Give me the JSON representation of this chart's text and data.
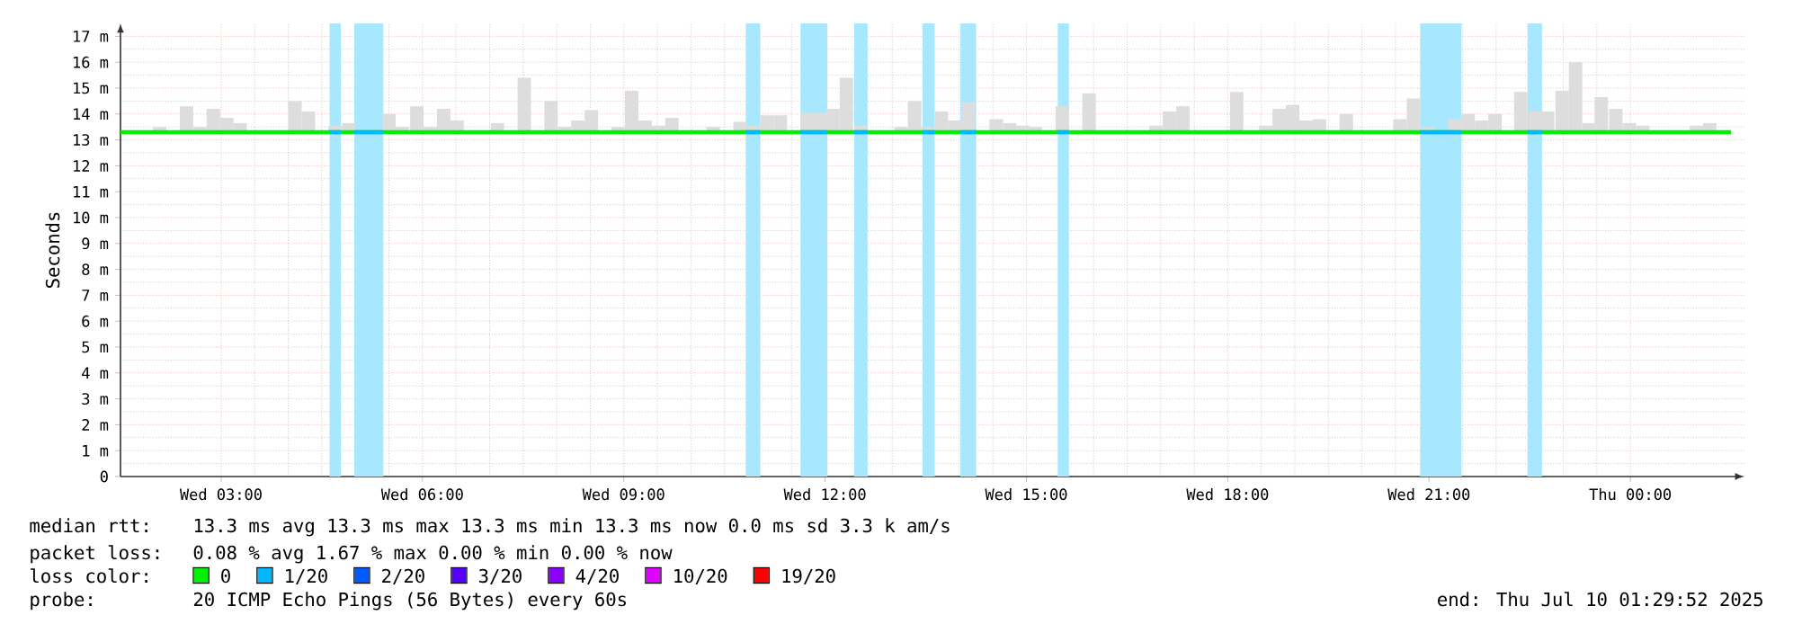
{
  "chart_data": {
    "type": "line",
    "ylabel": "Seconds",
    "legend_title": "loss color:",
    "legend": "bottom",
    "grid": true,
    "marker": "none",
    "xlim": [
      "2025-07-09T01:30",
      "2025-07-10T01:42"
    ],
    "ylim": [
      0,
      17.5
    ],
    "xticks": [
      {
        "value": "2025-07-09T03:00",
        "label": "Wed 03:00"
      },
      {
        "value": "2025-07-09T06:00",
        "label": "Wed 06:00"
      },
      {
        "value": "2025-07-09T09:00",
        "label": "Wed 09:00"
      },
      {
        "value": "2025-07-09T12:00",
        "label": "Wed 12:00"
      },
      {
        "value": "2025-07-09T15:00",
        "label": "Wed 15:00"
      },
      {
        "value": "2025-07-09T18:00",
        "label": "Wed 18:00"
      },
      {
        "value": "2025-07-09T21:00",
        "label": "Wed 21:00"
      },
      {
        "value": "2025-07-10T00:00",
        "label": "Thu 00:00"
      }
    ],
    "yticks": [
      0,
      {
        "value": 1,
        "label": "1 m"
      },
      {
        "value": 2,
        "label": "2 m"
      },
      {
        "value": 3,
        "label": "3 m"
      },
      {
        "value": 4,
        "label": "4 m"
      },
      {
        "value": 5,
        "label": "5 m"
      },
      {
        "value": 6,
        "label": "6 m"
      },
      {
        "value": 7,
        "label": "7 m"
      },
      {
        "value": 8,
        "label": "8 m"
      },
      {
        "value": 9,
        "label": "9 m"
      },
      {
        "value": 10,
        "label": "10 m"
      },
      {
        "value": 11,
        "label": "11 m"
      },
      {
        "value": 12,
        "label": "12 m"
      },
      {
        "value": 13,
        "label": "13 m"
      },
      {
        "value": 14,
        "label": "14 m"
      },
      {
        "value": 15,
        "label": "15 m"
      },
      {
        "value": 16,
        "label": "16 m"
      },
      {
        "value": 17,
        "label": "17 m"
      }
    ],
    "bands": [
      {
        "axis": "x",
        "from": "2025-07-09T04:37",
        "to": "2025-07-09T04:47",
        "color": "#a8e8ff"
      },
      {
        "axis": "x",
        "from": "2025-07-09T04:59",
        "to": "2025-07-09T05:25",
        "color": "#a8e8ff"
      },
      {
        "axis": "x",
        "from": "2025-07-09T10:49",
        "to": "2025-07-09T11:02",
        "color": "#a8e8ff"
      },
      {
        "axis": "x",
        "from": "2025-07-09T11:38",
        "to": "2025-07-09T12:02",
        "color": "#a8e8ff"
      },
      {
        "axis": "x",
        "from": "2025-07-09T12:26",
        "to": "2025-07-09T12:38",
        "color": "#a8e8ff"
      },
      {
        "axis": "x",
        "from": "2025-07-09T13:27",
        "to": "2025-07-09T13:38",
        "color": "#a8e8ff"
      },
      {
        "axis": "x",
        "from": "2025-07-09T14:01",
        "to": "2025-07-09T14:15",
        "color": "#a8e8ff"
      },
      {
        "axis": "x",
        "from": "2025-07-09T15:28",
        "to": "2025-07-09T15:38",
        "color": "#a8e8ff"
      },
      {
        "axis": "x",
        "from": "2025-07-09T20:52",
        "to": "2025-07-09T21:29",
        "color": "#a8e8ff"
      },
      {
        "axis": "x",
        "from": "2025-07-09T22:28",
        "to": "2025-07-09T22:41",
        "color": "#a8e8ff"
      }
    ],
    "series": [
      {
        "type": "bar",
        "color": "#dddddd",
        "x": [
          "2025-07-09T02:05",
          "2025-07-09T02:29",
          "2025-07-09T02:41",
          "2025-07-09T02:53",
          "2025-07-09T03:05",
          "2025-07-09T03:17",
          "2025-07-09T03:41",
          "2025-07-09T03:53",
          "2025-07-09T04:06",
          "2025-07-09T04:18",
          "2025-07-09T04:42",
          "2025-07-09T04:54",
          "2025-07-09T05:30",
          "2025-07-09T05:42",
          "2025-07-09T05:55",
          "2025-07-09T06:07",
          "2025-07-09T06:19",
          "2025-07-09T06:31",
          "2025-07-09T07:07",
          "2025-07-09T07:31",
          "2025-07-09T07:55",
          "2025-07-09T08:07",
          "2025-07-09T08:19",
          "2025-07-09T08:31",
          "2025-07-09T08:55",
          "2025-07-09T09:07",
          "2025-07-09T09:19",
          "2025-07-09T09:31",
          "2025-07-09T09:43",
          "2025-07-09T10:20",
          "2025-07-09T10:44",
          "2025-07-09T10:56",
          "2025-07-09T11:08",
          "2025-07-09T11:20",
          "2025-07-09T11:44",
          "2025-07-09T11:56",
          "2025-07-09T12:07",
          "2025-07-09T12:19",
          "2025-07-09T12:32",
          "2025-07-09T13:08",
          "2025-07-09T13:20",
          "2025-07-09T13:32",
          "2025-07-09T13:44",
          "2025-07-09T13:56",
          "2025-07-09T14:08",
          "2025-07-09T14:33",
          "2025-07-09T14:45",
          "2025-07-09T14:57",
          "2025-07-09T15:08",
          "2025-07-09T15:32",
          "2025-07-09T15:56",
          "2025-07-09T16:56",
          "2025-07-09T17:08",
          "2025-07-09T17:20",
          "2025-07-09T18:08",
          "2025-07-09T18:34",
          "2025-07-09T18:46",
          "2025-07-09T18:58",
          "2025-07-09T19:10",
          "2025-07-09T19:22",
          "2025-07-09T19:46",
          "2025-07-09T20:34",
          "2025-07-09T20:46",
          "2025-07-09T20:59",
          "2025-07-09T21:23",
          "2025-07-09T21:35",
          "2025-07-09T21:47",
          "2025-07-09T21:59",
          "2025-07-09T22:22",
          "2025-07-09T22:35",
          "2025-07-09T22:46",
          "2025-07-09T22:59",
          "2025-07-09T23:11",
          "2025-07-09T23:23",
          "2025-07-09T23:34",
          "2025-07-09T23:47",
          "2025-07-09T23:59",
          "2025-07-10T00:11",
          "2025-07-10T00:59",
          "2025-07-10T01:11"
        ],
        "base": [
          13.3,
          13.3,
          13.3,
          13.3,
          13.3,
          13.3,
          null,
          null,
          13.3,
          13.3,
          13.3,
          13.3,
          13.3,
          13.3,
          13.3,
          13.3,
          13.3,
          13.3,
          13.3,
          13.3,
          13.3,
          13.3,
          13.3,
          13.3,
          13.3,
          13.3,
          13.3,
          13.3,
          13.3,
          13.3,
          13.3,
          13.3,
          13.3,
          13.3,
          13.3,
          13.3,
          13.3,
          13.3,
          13.3,
          13.3,
          13.3,
          13.3,
          13.3,
          13.3,
          13.3,
          13.3,
          13.3,
          13.3,
          13.3,
          13.3,
          13.3,
          13.3,
          13.3,
          13.3,
          13.3,
          13.3,
          13.3,
          13.3,
          13.3,
          13.3,
          13.3,
          13.3,
          13.3,
          13.3,
          13.3,
          13.3,
          13.3,
          13.3,
          13.3,
          13.3,
          13.3,
          13.3,
          13.3,
          13.3,
          13.3,
          13.3,
          13.3,
          13.3,
          13.3,
          13.3
        ],
        "values": [
          0.2,
          1.0,
          0.2,
          0.9,
          0.55,
          0.35,
          null,
          null,
          1.2,
          0.8,
          0.25,
          0.35,
          0.7,
          0.2,
          1.0,
          0.2,
          0.9,
          0.45,
          0.35,
          2.1,
          1.2,
          0.2,
          0.45,
          0.85,
          0.2,
          1.6,
          0.45,
          0.25,
          0.55,
          0.2,
          0.4,
          0.25,
          0.65,
          0.65,
          0.75,
          0.75,
          0.9,
          2.1,
          0.25,
          0.2,
          1.2,
          0.2,
          0.8,
          0.45,
          1.15,
          0.5,
          0.35,
          0.25,
          0.2,
          1.0,
          1.5,
          0.25,
          0.8,
          1.0,
          1.55,
          0.25,
          0.9,
          1.05,
          0.45,
          0.5,
          0.7,
          0.5,
          1.3,
          0.2,
          0.5,
          0.7,
          0.45,
          0.7,
          1.55,
          0.8,
          0.8,
          1.6,
          2.7,
          0.35,
          1.35,
          0.9,
          0.35,
          0.25,
          0.25,
          0.35
        ]
      },
      {
        "name": "0",
        "color": "#00f000",
        "x": [
          "2025-07-09T01:30",
          "2025-07-10T01:30"
        ],
        "values": [
          13.3,
          13.3
        ]
      },
      {
        "name": "1/20",
        "color": "#00b8ff",
        "x": [
          "2025-07-09T04:37",
          "2025-07-09T04:47",
          null,
          "2025-07-09T04:59",
          "2025-07-09T05:25",
          null,
          "2025-07-09T10:49",
          "2025-07-09T11:02",
          null,
          "2025-07-09T11:38",
          "2025-07-09T12:02",
          null,
          "2025-07-09T12:26",
          "2025-07-09T12:38",
          null,
          "2025-07-09T13:27",
          "2025-07-09T13:38",
          null,
          "2025-07-09T14:01",
          "2025-07-09T14:15",
          null,
          "2025-07-09T15:28",
          "2025-07-09T15:38",
          null,
          "2025-07-09T20:52",
          "2025-07-09T21:29",
          null,
          "2025-07-09T22:28",
          "2025-07-09T22:41"
        ],
        "values": [
          13.3,
          13.3,
          null,
          13.3,
          13.3,
          null,
          13.3,
          13.3,
          null,
          13.3,
          13.3,
          null,
          13.3,
          13.3,
          null,
          13.3,
          13.3,
          null,
          13.3,
          13.3,
          null,
          13.3,
          13.3,
          null,
          13.3,
          13.3,
          null,
          13.3,
          13.3
        ]
      },
      {
        "name": "2/20",
        "color": "#0059ff"
      },
      {
        "name": "3/20",
        "color": "#5500ff"
      },
      {
        "name": "4/20",
        "color": "#8a00ff"
      },
      {
        "name": "10/20",
        "color": "#e000ff"
      },
      {
        "name": "19/20",
        "color": "#ff0000"
      }
    ],
    "annotations": [
      "median rtt:",
      "13.3 ms avg  13.3 ms max  13.3 ms min  13.3 ms now  0.0 ms sd  3.3 k am/s",
      "packet loss:",
      "0.08 % avg  1.67 % max  0.00 % min  0.00 % now",
      "probe:",
      "20 ICMP Echo Pings (56 Bytes) every 60s",
      "end: Thu Jul 10 01:29:52 2025"
    ]
  }
}
